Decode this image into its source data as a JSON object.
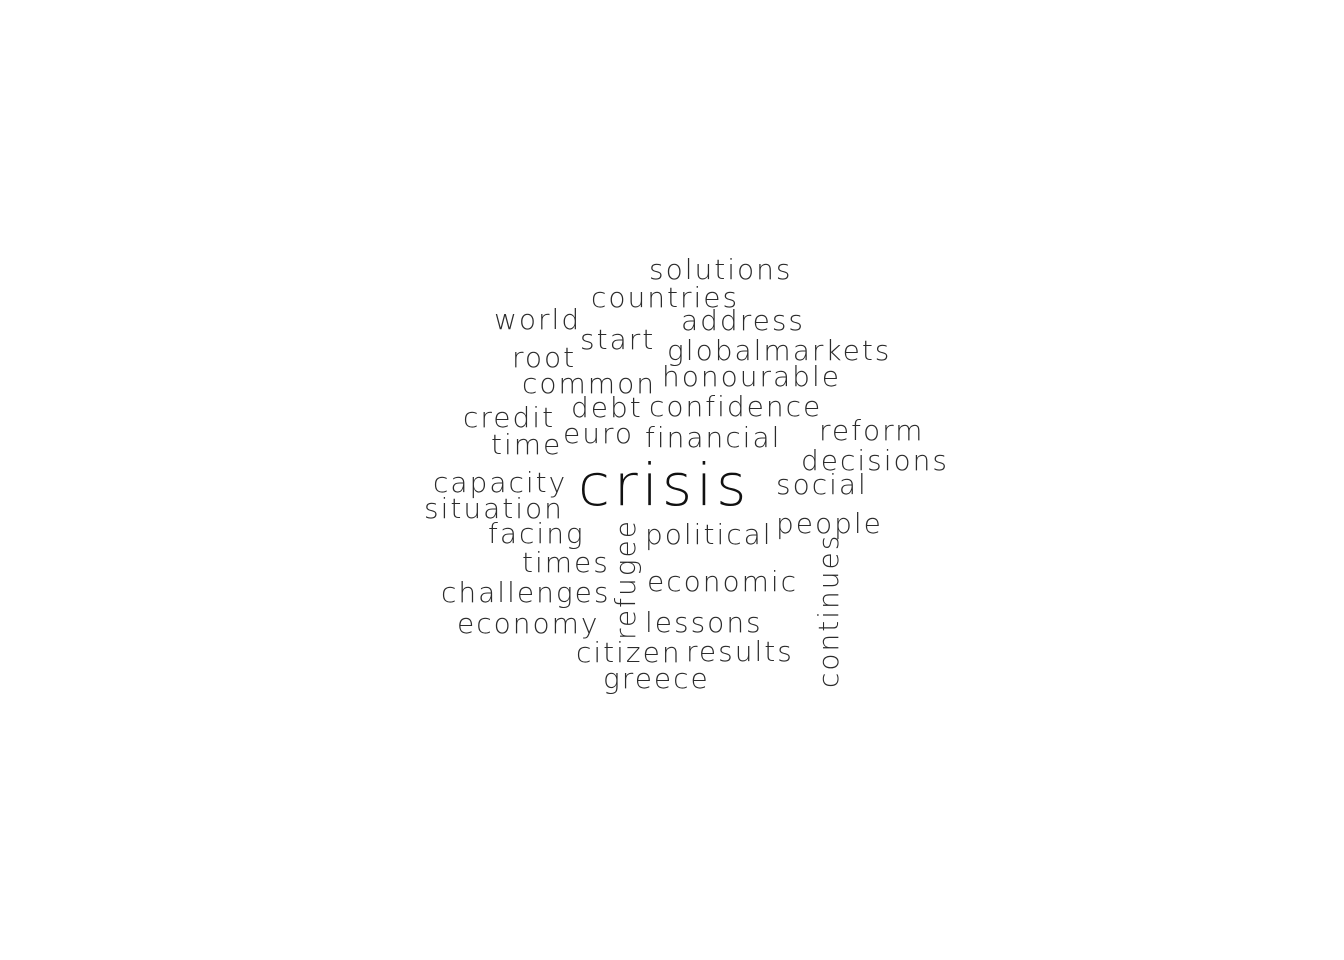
{
  "wordcloud": {
    "words": {
      "crisis": "crisis",
      "solutions": "solutions",
      "countries": "countries",
      "address": "address",
      "world": "world",
      "start": "start",
      "globalmarkets": "globalmarkets",
      "root": "root",
      "common": "common",
      "honourable": "honourable",
      "credit": "credit",
      "debt": "debt",
      "confidence": "confidence",
      "time": "time",
      "euro": "euro",
      "financial": "financial",
      "reform": "reform",
      "decisions": "decisions",
      "capacity": "capacity",
      "social": "social",
      "situation": "situation",
      "refugee": "refugee",
      "people": "people",
      "facing": "facing",
      "political": "political",
      "times": "times",
      "continues": "continues",
      "economic": "economic",
      "challenges": "challenges",
      "economy": "economy",
      "lessons": "lessons",
      "citizen": "citizen",
      "results": "results",
      "greece": "greece"
    },
    "text_color": "#2b2b2b",
    "background_color": "#ffffff"
  }
}
